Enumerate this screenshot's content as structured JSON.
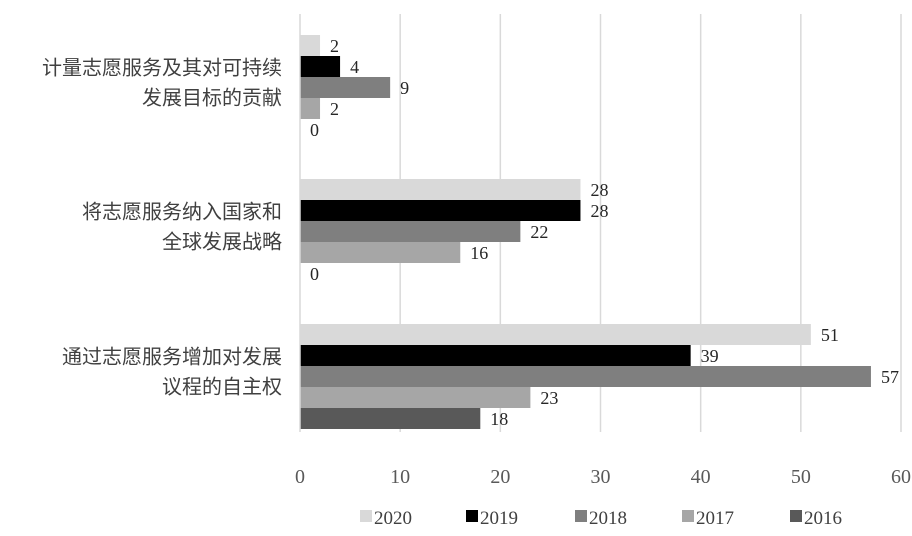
{
  "chart_data": {
    "type": "bar",
    "orientation": "horizontal",
    "categories": [
      "计量志愿服务及其对可持续发展目标的贡献",
      "将志愿服务纳入国家和全球发展战略",
      "通过志愿服务增加对发展议程的自主权"
    ],
    "category_lines": [
      [
        "计量志愿服务及其对可持续",
        "发展目标的贡献"
      ],
      [
        "将志愿服务纳入国家和",
        "全球发展战略"
      ],
      [
        "通过志愿服务增加对发展",
        "议程的自主权"
      ]
    ],
    "series": [
      {
        "name": "2020",
        "color": "#d9d9d9",
        "values": [
          2,
          28,
          51
        ]
      },
      {
        "name": "2019",
        "color": "#000000",
        "values": [
          4,
          28,
          39
        ]
      },
      {
        "name": "2018",
        "color": "#7f7f7f",
        "values": [
          9,
          22,
          57
        ]
      },
      {
        "name": "2017",
        "color": "#a6a6a6",
        "values": [
          2,
          16,
          23
        ]
      },
      {
        "name": "2016",
        "color": "#595959",
        "values": [
          0,
          0,
          18
        ]
      }
    ],
    "xlim": [
      0,
      60
    ],
    "xticks": [
      "0",
      "10",
      "20",
      "30",
      "40",
      "50",
      "60"
    ],
    "title": "",
    "xlabel": "",
    "ylabel": "",
    "grid": "vertical",
    "legend_position": "bottom"
  }
}
